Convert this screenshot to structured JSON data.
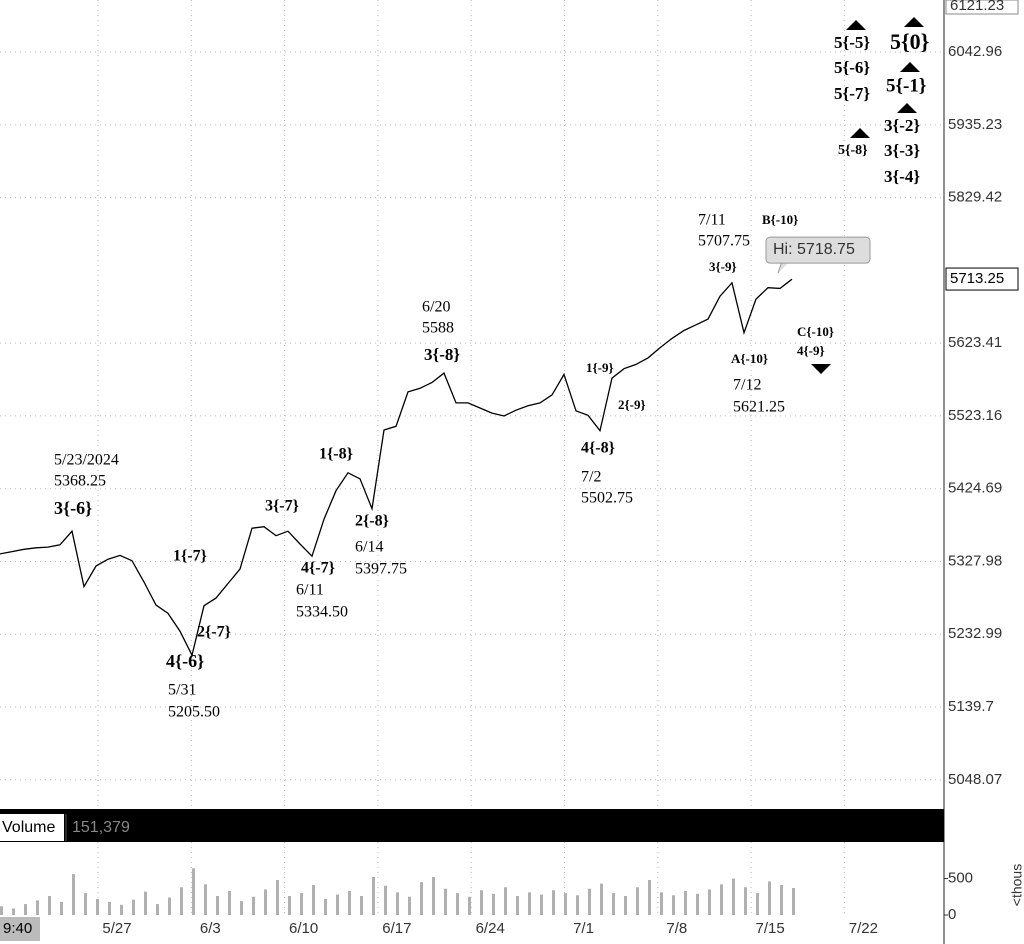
{
  "chart_data": {
    "type": "line",
    "color": "#000000",
    "log_scale": true,
    "grid": true,
    "values": [
      5338,
      5341,
      5344,
      5346,
      5347,
      5350,
      5368,
      5295,
      5322,
      5331,
      5336,
      5329,
      5301,
      5271,
      5260,
      5237,
      5206,
      5270,
      5280,
      5299,
      5318,
      5372,
      5374,
      5362,
      5368,
      5351,
      5335,
      5384,
      5422,
      5446,
      5438,
      5398,
      5504,
      5509,
      5556,
      5561,
      5569,
      5582,
      5541,
      5541,
      5534,
      5527,
      5523,
      5531,
      5537,
      5541,
      5552,
      5580,
      5530,
      5524,
      5503,
      5575,
      5588,
      5594,
      5603,
      5617,
      5630,
      5641,
      5649,
      5657,
      5689,
      5708,
      5638,
      5685,
      5701,
      5700,
      5713
    ],
    "ylim": [
      5013,
      6121.23
    ],
    "yticks": [
      6042.96,
      5935.23,
      5829.42,
      5623.41,
      5523.16,
      5424.69,
      5327.98,
      5232.99,
      5139.7,
      5048.07
    ],
    "last_price": 5713.25,
    "high": {
      "label": "Hi:",
      "value": 5718.75
    },
    "xticks": [
      "5/27",
      "6/3",
      "6/10",
      "6/17",
      "6/24",
      "7/1",
      "7/8",
      "7/15",
      "7/22"
    ],
    "time_label": "9:40",
    "annotations": [
      "5/23/2024",
      "5368.25",
      "3{-6}",
      "1{-7}",
      "2{-7}",
      "4{-6}",
      "5/31",
      "5205.50",
      "3{-7}",
      "4{-7}",
      "6/11",
      "5334.50",
      "1{-8}",
      "2{-8}",
      "6/14",
      "5397.75",
      "6/20",
      "5588",
      "3{-8}",
      "1{-9}",
      "2{-9}",
      "4{-8}",
      "7/2",
      "5502.75",
      "7/11",
      "5707.75",
      "3{-9}",
      "B{-10}",
      "A{-10}",
      "7/12",
      "5621.25",
      "C{-10}",
      "4{-9}",
      "5{-5}",
      "5{-6}",
      "5{-7}",
      "5{-8}",
      "5{0}",
      "5{-1}",
      "3{-2}",
      "3{-3}",
      "3{-4}"
    ],
    "volume": {
      "label": "Volume",
      "last": {
        "value": 151379,
        "label": "151,379"
      },
      "unit": "<thous",
      "color": "#b0b0b0",
      "ylim": [
        0,
        1000
      ],
      "yticks": [
        500,
        0
      ],
      "values": [
        120,
        90,
        150,
        200,
        260,
        180,
        560,
        300,
        220,
        180,
        140,
        210,
        320,
        150,
        240,
        380,
        640,
        420,
        260,
        330,
        190,
        250,
        350,
        480,
        260,
        300,
        410,
        220,
        280,
        330,
        260,
        520,
        400,
        310,
        250,
        450,
        520,
        360,
        300,
        250,
        340,
        290,
        380,
        260,
        310,
        280,
        340,
        300,
        270,
        360,
        430,
        300,
        260,
        380,
        480,
        310,
        270,
        330,
        290,
        350,
        420,
        500,
        380,
        300,
        460,
        410,
        370
      ]
    }
  }
}
